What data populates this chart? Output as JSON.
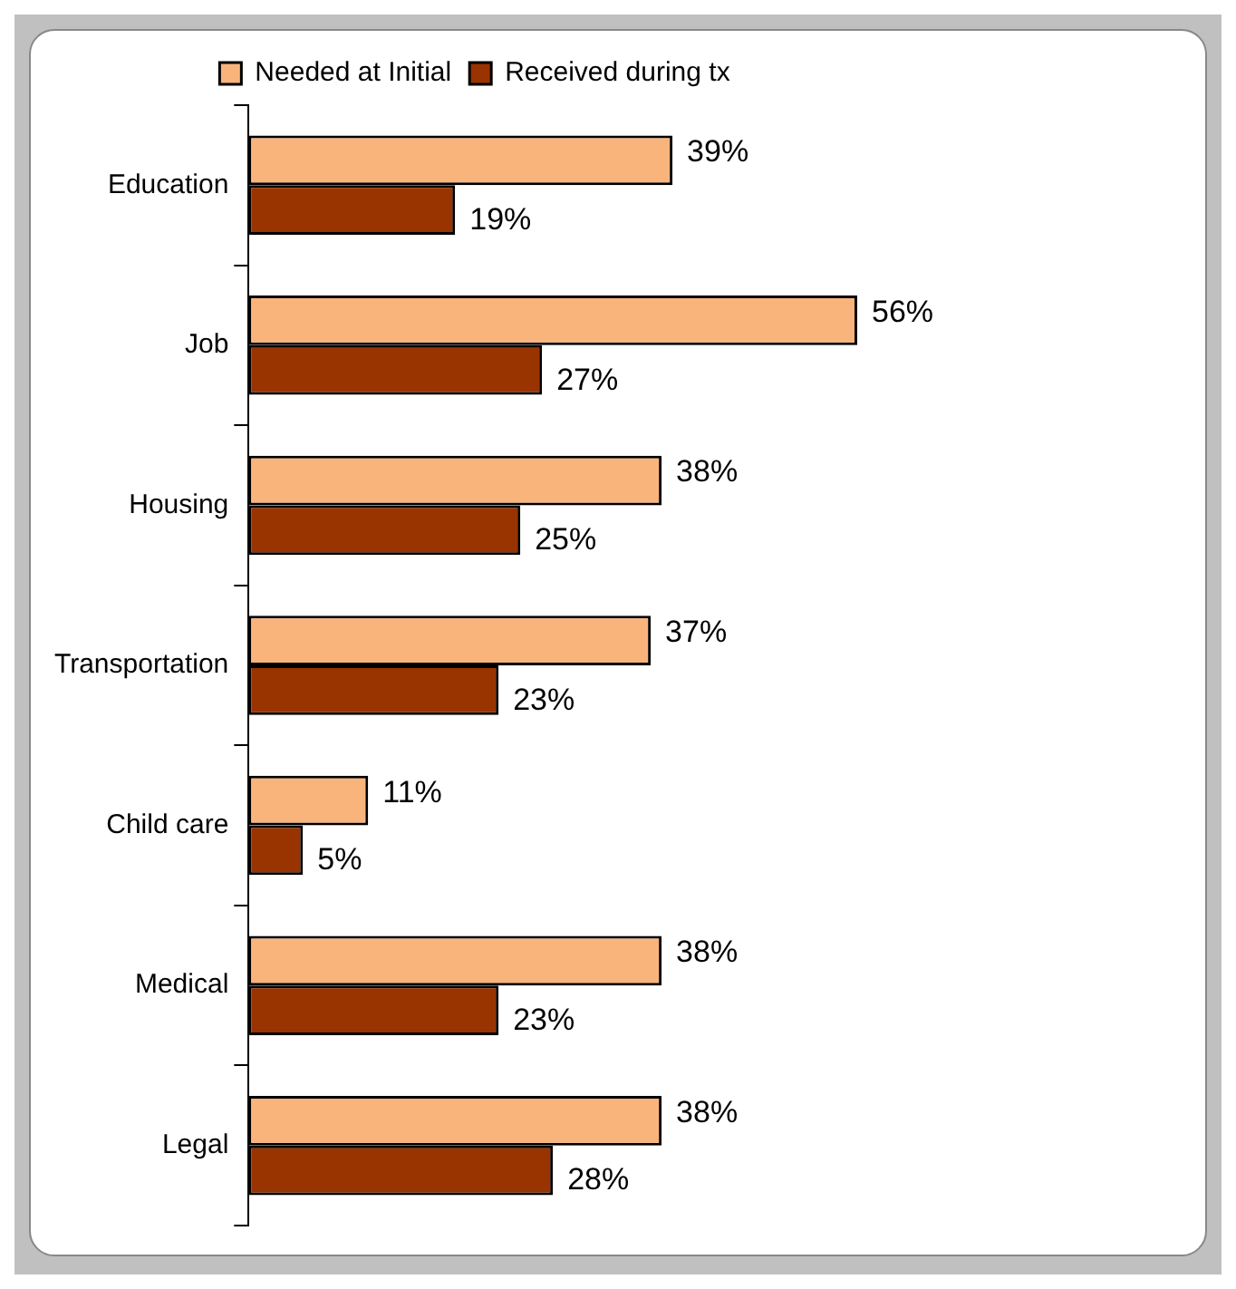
{
  "chart_data": {
    "type": "bar",
    "orientation": "horizontal",
    "categories": [
      "Education",
      "Job",
      "Housing",
      "Transportation",
      "Child care",
      "Medical",
      "Legal"
    ],
    "series": [
      {
        "name": "Needed at Initial",
        "color": "#f9b47c",
        "values": [
          39,
          56,
          38,
          37,
          11,
          38,
          38
        ],
        "value_labels": [
          "39%",
          "56%",
          "38%",
          "37%",
          "11%",
          "38%",
          "38%"
        ]
      },
      {
        "name": "Received during tx",
        "color": "#993300",
        "values": [
          19,
          27,
          25,
          23,
          5,
          23,
          28
        ],
        "value_labels": [
          "19%",
          "27%",
          "25%",
          "23%",
          "5%",
          "23%",
          "28%"
        ]
      }
    ],
    "tick_labels": "y",
    "legend": "top"
  }
}
